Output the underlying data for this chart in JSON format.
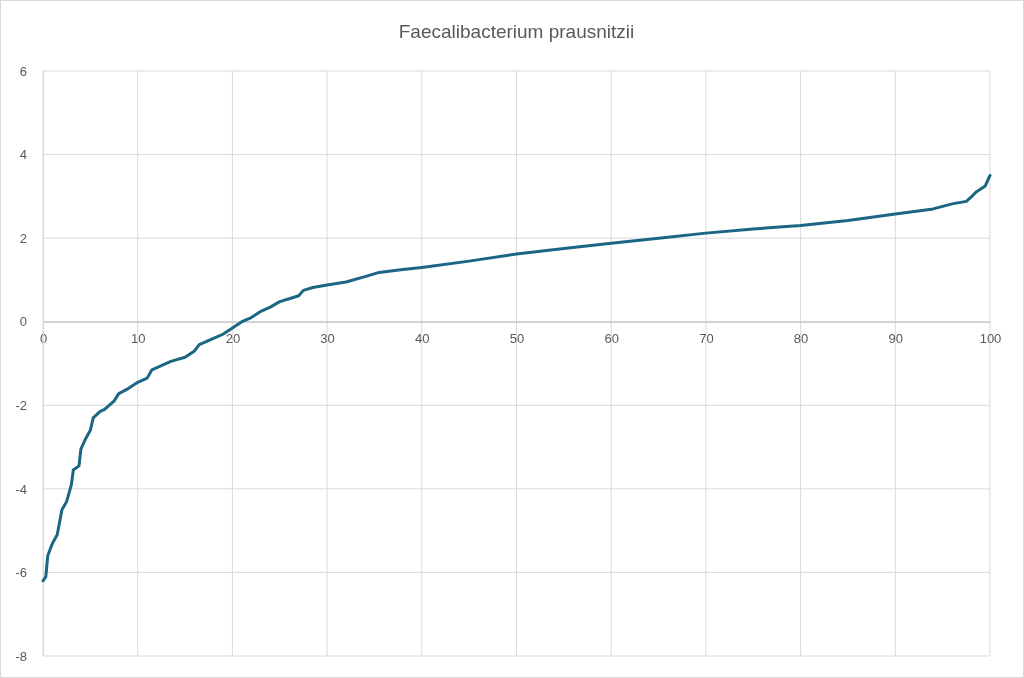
{
  "chart_data": {
    "type": "line",
    "title": "Faecalibacterium prausnitzii",
    "grid": true,
    "marker": "none",
    "line_style": "solid",
    "xlim": [
      0,
      100
    ],
    "xticks": [
      0,
      10,
      20,
      30,
      40,
      50,
      60,
      70,
      80,
      90,
      100
    ],
    "ylim": [
      -8,
      6
    ],
    "yticks": [
      -8,
      -6,
      -4,
      -2,
      0,
      2,
      4,
      6
    ],
    "series": [
      {
        "color": "#1b6585",
        "x": [
          0,
          0.3,
          0.5,
          1,
          1.5,
          2,
          2.5,
          3,
          3.2,
          3.8,
          4,
          4.5,
          5,
          5.3,
          6,
          6.5,
          7.5,
          8,
          9,
          10,
          11,
          11.5,
          12.5,
          13.5,
          15,
          16,
          16.5,
          18,
          19,
          20,
          21,
          22,
          23,
          24,
          25,
          26,
          27,
          27.5,
          28.5,
          30,
          32,
          34,
          35.5,
          38,
          40,
          45,
          50,
          55,
          60,
          65,
          70,
          75,
          80,
          85,
          90,
          94,
          96,
          97.5,
          98,
          98.5,
          99.5,
          100
        ],
        "values": [
          -6.2,
          -6.1,
          -5.6,
          -5.3,
          -5.1,
          -4.5,
          -4.3,
          -3.9,
          -3.55,
          -3.45,
          -3.05,
          -2.8,
          -2.6,
          -2.3,
          -2.15,
          -2.1,
          -1.9,
          -1.72,
          -1.6,
          -1.45,
          -1.35,
          -1.15,
          -1.05,
          -0.95,
          -0.85,
          -0.7,
          -0.55,
          -0.4,
          -0.3,
          -0.15,
          0,
          0.1,
          0.25,
          0.35,
          0.48,
          0.55,
          0.62,
          0.75,
          0.82,
          0.88,
          0.95,
          1.08,
          1.18,
          1.25,
          1.3,
          1.45,
          1.62,
          1.75,
          1.88,
          2,
          2.12,
          2.22,
          2.3,
          2.42,
          2.58,
          2.7,
          2.82,
          2.88,
          2.98,
          3.1,
          3.25,
          3.5
        ]
      }
    ]
  }
}
